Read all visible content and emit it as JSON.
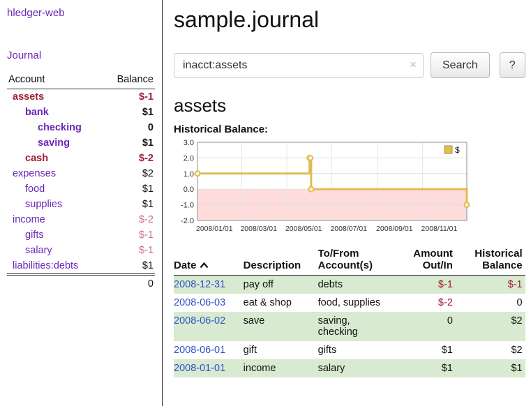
{
  "app": {
    "brand": "hledger-web",
    "nav": {
      "journal": "Journal"
    }
  },
  "colors": {
    "link_purple": "#6b28b5",
    "negative_red": "#9e1f33",
    "negative_faded_red": "#c4737d",
    "date_link_blue": "#2e53c9",
    "row_shade_green": "#d8ead0",
    "chart_line_gold": "#e0bc52",
    "chart_negative_fill": "#ffdcdc"
  },
  "sidebar": {
    "header": {
      "account": "Account",
      "balance": "Balance"
    },
    "accounts": [
      {
        "name": "assets",
        "balance": "$-1"
      },
      {
        "name": "bank",
        "balance": "$1"
      },
      {
        "name": "checking",
        "balance": "0"
      },
      {
        "name": "saving",
        "balance": "$1"
      },
      {
        "name": "cash",
        "balance": "$-2"
      },
      {
        "name": "expenses",
        "balance": "$2"
      },
      {
        "name": "food",
        "balance": "$1"
      },
      {
        "name": "supplies",
        "balance": "$1"
      },
      {
        "name": "income",
        "balance": "$-2"
      },
      {
        "name": "gifts",
        "balance": "$-1"
      },
      {
        "name": "salary",
        "balance": "$-1"
      },
      {
        "name": "liabilities:debts",
        "balance": "$1"
      }
    ],
    "total": "0"
  },
  "header": {
    "title": "sample.journal"
  },
  "search": {
    "value": "inacct:assets",
    "clear_icon": "×",
    "button_label": "Search",
    "help_label": "?"
  },
  "account_page": {
    "title": "assets",
    "chart_label": "Historical Balance:"
  },
  "chart_data": {
    "type": "line",
    "title": "Historical Balance:",
    "xlim": [
      "2008-01-01",
      "2008-12-31"
    ],
    "ylim": [
      -2,
      3
    ],
    "yticks": [
      3,
      2,
      1,
      0,
      -1,
      -2
    ],
    "xticks": [
      {
        "date": "2008-01-01",
        "label": "2008/01/01"
      },
      {
        "date": "2008-03-01",
        "label": "2008/03/01"
      },
      {
        "date": "2008-05-01",
        "label": "2008/05/01"
      },
      {
        "date": "2008-07-01",
        "label": "2008/07/01"
      },
      {
        "date": "2008-09-01",
        "label": "2008/09/01"
      },
      {
        "date": "2008-11-01",
        "label": "2008/11/01"
      }
    ],
    "grid": true,
    "legend": {
      "label": "$",
      "position": "top-right"
    },
    "negative_fill": "#ffdcdc",
    "series": [
      {
        "name": "$",
        "color": "#e0bc52",
        "step_points": [
          [
            "2008-01-01",
            1
          ],
          [
            "2008-06-01",
            1
          ],
          [
            "2008-06-01",
            2
          ],
          [
            "2008-06-02",
            2
          ],
          [
            "2008-06-03",
            2
          ],
          [
            "2008-06-03",
            0
          ],
          [
            "2008-12-31",
            0
          ],
          [
            "2008-12-31",
            -1
          ]
        ],
        "markers": [
          [
            "2008-01-01",
            1
          ],
          [
            "2008-06-01",
            2
          ],
          [
            "2008-06-02",
            2
          ],
          [
            "2008-06-03",
            0
          ],
          [
            "2008-12-31",
            -1
          ]
        ]
      }
    ]
  },
  "register": {
    "columns": [
      "Date",
      "Description",
      "To/From\nAccount(s)",
      "Amount\nOut/In",
      "Historical\nBalance"
    ],
    "rows": [
      {
        "date": "2008-12-31",
        "description": "pay off",
        "accounts": "debts",
        "amount": "$-1",
        "balance": "$-1"
      },
      {
        "date": "2008-06-03",
        "description": "eat & shop",
        "accounts": "food, supplies",
        "amount": "$-2",
        "balance": "0"
      },
      {
        "date": "2008-06-02",
        "description": "save",
        "accounts": "saving,\nchecking",
        "amount": "0",
        "balance": "$2"
      },
      {
        "date": "2008-06-01",
        "description": "gift",
        "accounts": "gifts",
        "amount": "$1",
        "balance": "$2"
      },
      {
        "date": "2008-01-01",
        "description": "income",
        "accounts": "salary",
        "amount": "$1",
        "balance": "$1"
      }
    ]
  }
}
